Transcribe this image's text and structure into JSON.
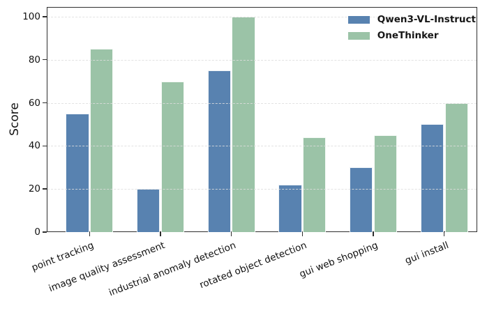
{
  "chart_data": {
    "type": "bar",
    "title": "",
    "xlabel": "",
    "ylabel": "Score",
    "categories": [
      "point tracking",
      "image quality assessment",
      "industrial anomaly detection",
      "rotated object detection",
      "gui web shopping",
      "gui install"
    ],
    "series": [
      {
        "name": "Qwen3-VL-Instruct",
        "color": "#5882b0",
        "values": [
          55,
          20,
          75,
          22,
          30,
          50
        ]
      },
      {
        "name": "OneThinker",
        "color": "#9bc3a7",
        "values": [
          85,
          70,
          100,
          44,
          45,
          60
        ]
      }
    ],
    "ylim": [
      0,
      104.5
    ],
    "yticks": [
      0,
      20,
      40,
      60,
      80,
      100
    ],
    "grid": "horizontal-dashed",
    "legend_position": "upper-right",
    "colors": {
      "spine": "#2e2e2e",
      "grid": "#dedede",
      "bar_edge": "#ffffff",
      "text": "#111111"
    }
  }
}
